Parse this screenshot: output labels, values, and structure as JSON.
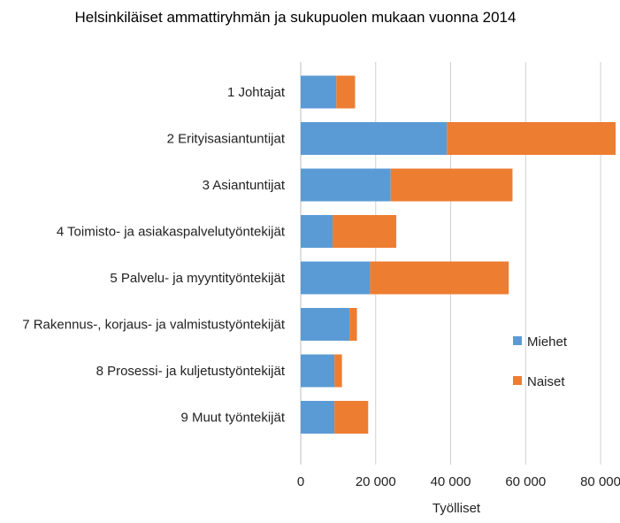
{
  "chart_data": {
    "type": "bar",
    "orientation": "horizontal",
    "stacked": true,
    "title": "Helsinkiläiset ammattiryhmän ja sukupuolen mukaan vuonna 2014",
    "xlabel": "Työlliset",
    "ylabel": "",
    "xlim": [
      0,
      84000
    ],
    "x_ticks": [
      0,
      20000,
      40000,
      60000,
      80000
    ],
    "x_tick_labels": [
      "0",
      "20 000",
      "40 000",
      "60 000",
      "80 000"
    ],
    "grid": true,
    "legend_position": "right",
    "categories": [
      "1 Johtajat",
      "2 Erityisasiantuntijat",
      "3 Asiantuntijat",
      "4 Toimisto- ja asiakaspalvelutyöntekijät",
      "5 Palvelu- ja myyntityöntekijät",
      "7 Rakennus-, korjaus- ja valmistustyöntekijät",
      "8 Prosessi- ja kuljetustyöntekijät",
      "9 Muut työntekijät"
    ],
    "series": [
      {
        "name": "Miehet",
        "color": "#5b9bd5",
        "values": [
          9500,
          39000,
          24000,
          8500,
          18500,
          13000,
          9000,
          9000
        ]
      },
      {
        "name": "Naiset",
        "color": "#ed7d31",
        "values": [
          5000,
          45000,
          32500,
          17000,
          37000,
          2000,
          2000,
          9000
        ]
      }
    ]
  }
}
